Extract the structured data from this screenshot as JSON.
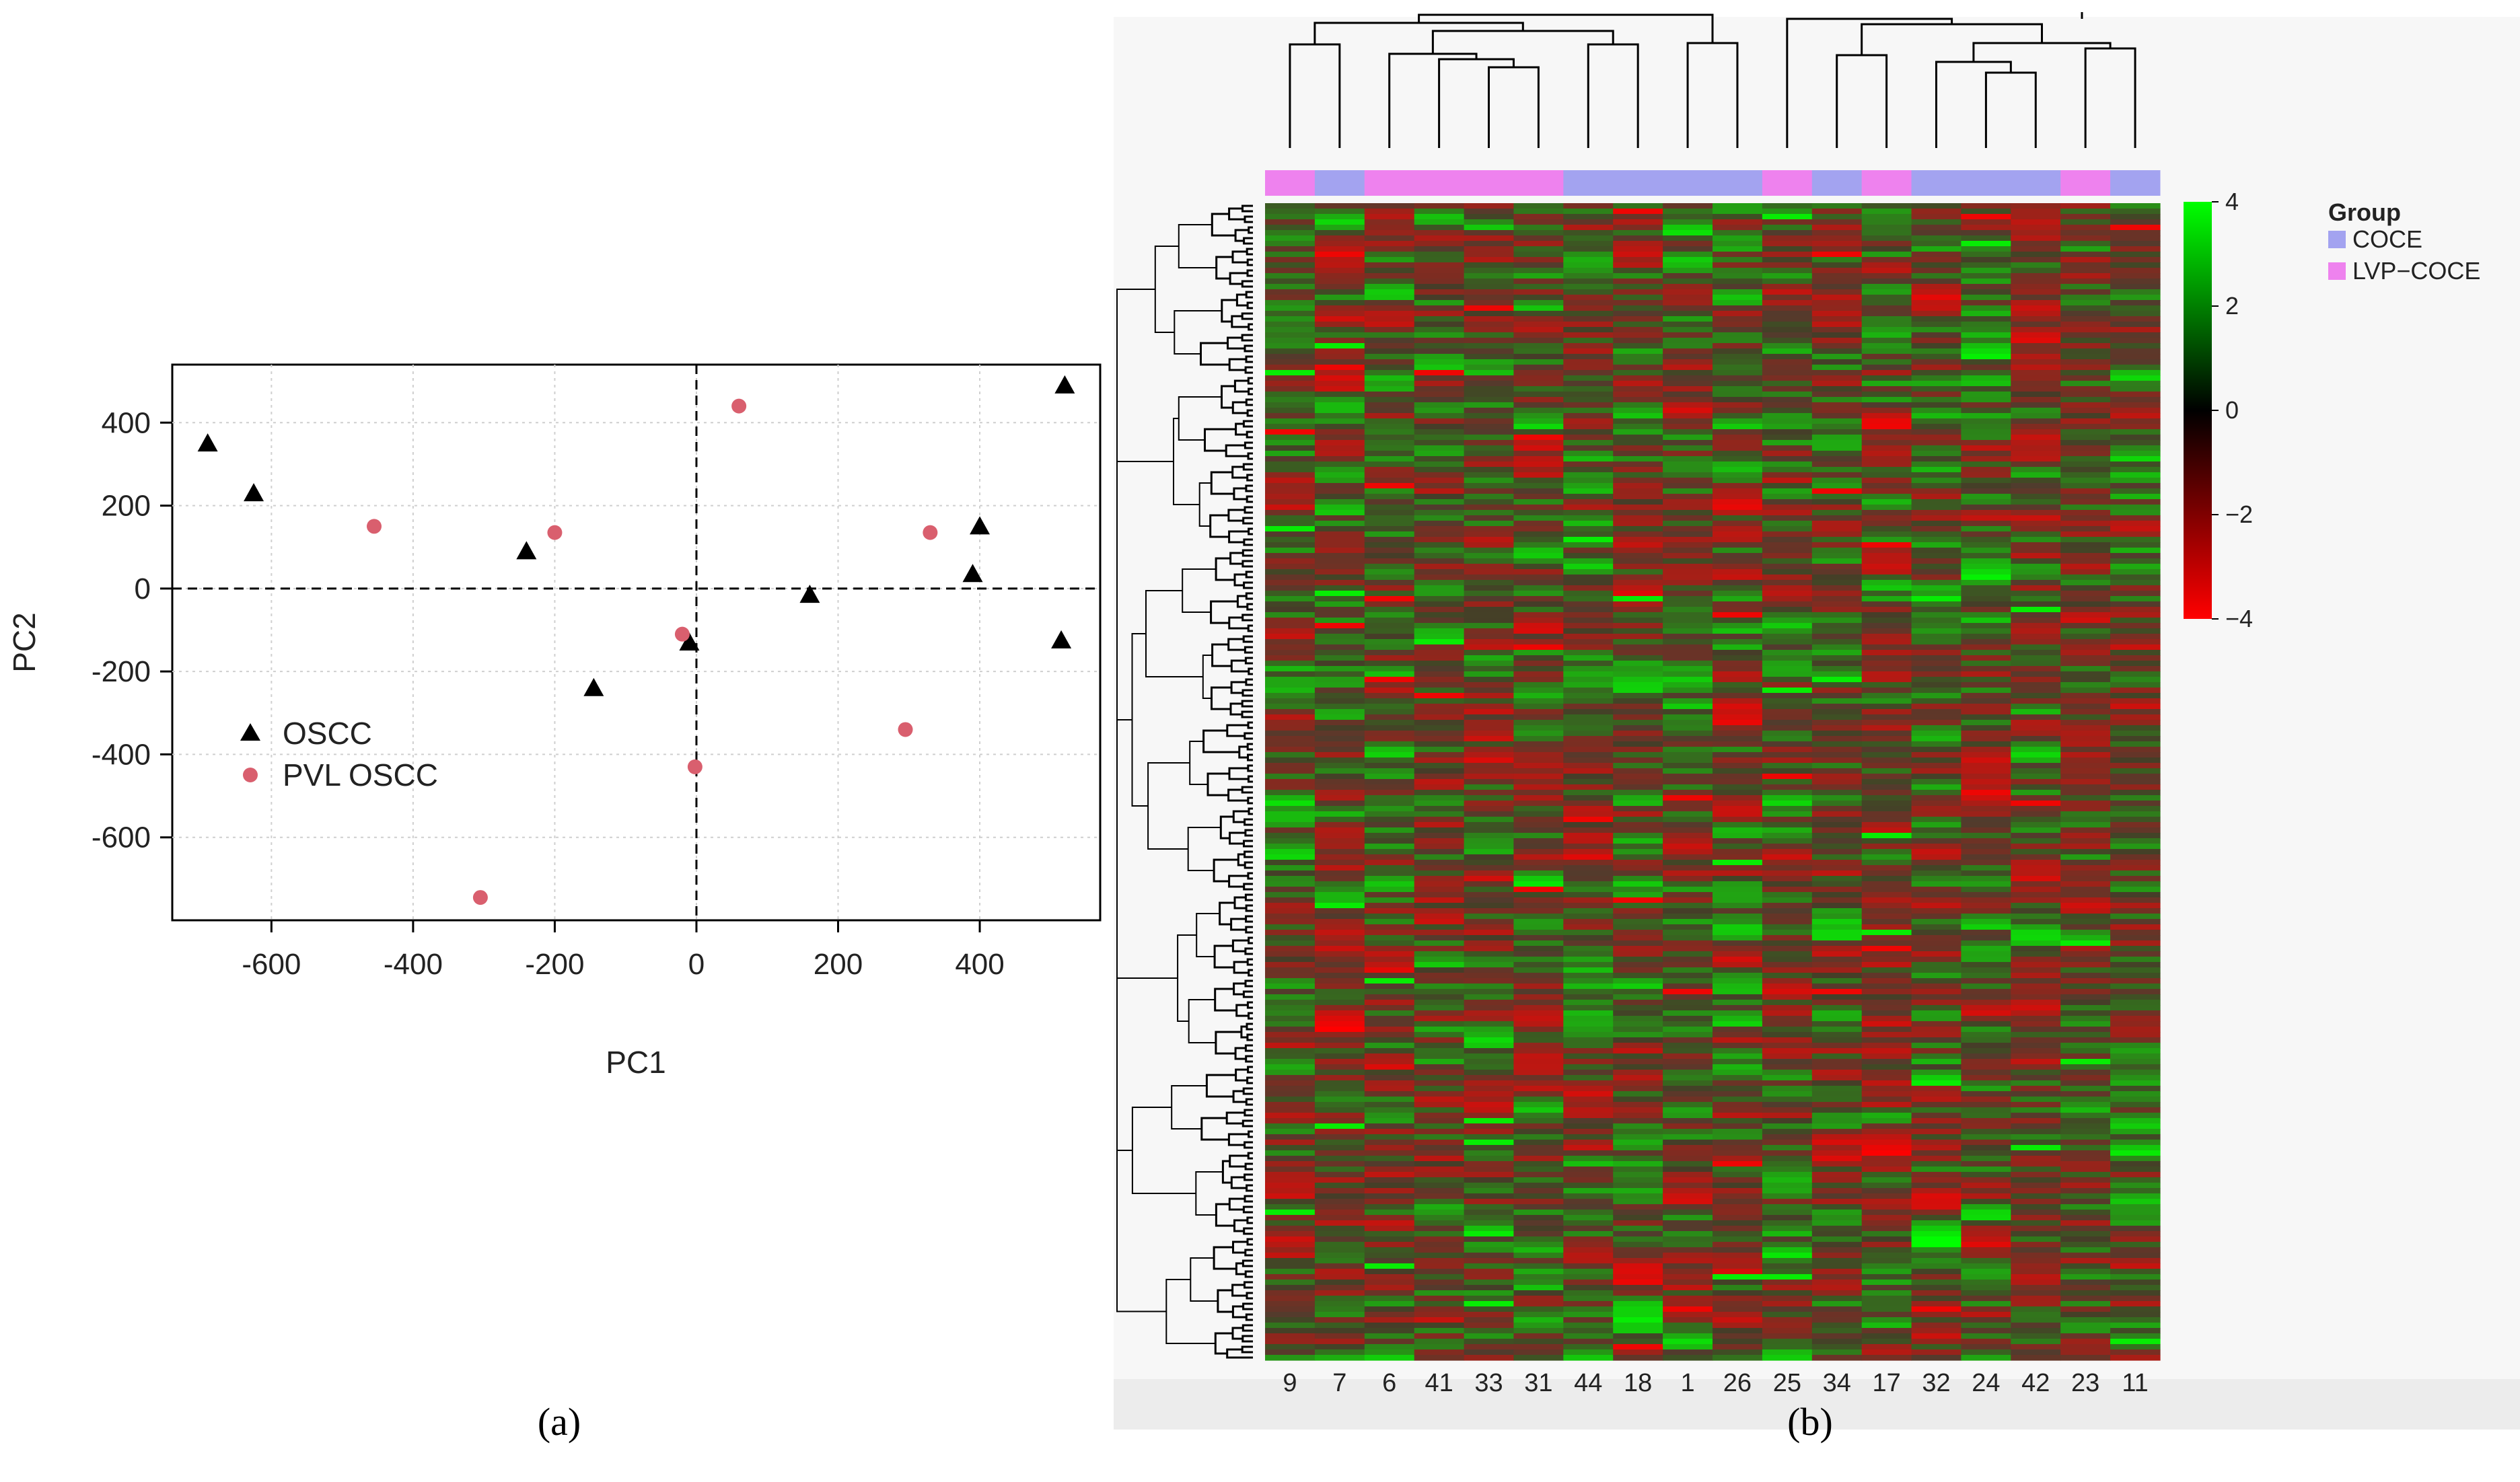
{
  "panel_labels": {
    "a": "(a)",
    "b": "(b)"
  },
  "chart_data": [
    {
      "type": "scatter",
      "panel": "a",
      "xlabel": "PC1",
      "ylabel": "PC2",
      "xlim": [
        -740,
        570
      ],
      "ylim": [
        -800,
        540
      ],
      "xticks": [
        -600,
        -400,
        -200,
        0,
        200,
        400
      ],
      "yticks": [
        -600,
        -400,
        -200,
        0,
        200,
        400
      ],
      "grid": true,
      "zero_lines": true,
      "legend_position": "middle-left",
      "series": [
        {
          "name": "OSCC",
          "marker": "triangle",
          "color": "#000000",
          "points": [
            {
              "x": -690,
              "y": 350
            },
            {
              "x": -625,
              "y": 230
            },
            {
              "x": 520,
              "y": 490
            },
            {
              "x": 400,
              "y": 150
            },
            {
              "x": 390,
              "y": 35
            },
            {
              "x": -240,
              "y": 90
            },
            {
              "x": 160,
              "y": -15
            },
            {
              "x": -10,
              "y": -130
            },
            {
              "x": 515,
              "y": -125
            },
            {
              "x": -145,
              "y": -240
            }
          ]
        },
        {
          "name": "PVL OSCC",
          "marker": "circle",
          "color": "#d95f6e",
          "points": [
            {
              "x": 60,
              "y": 440
            },
            {
              "x": -455,
              "y": 150
            },
            {
              "x": -200,
              "y": 135
            },
            {
              "x": 330,
              "y": 135
            },
            {
              "x": -20,
              "y": -110
            },
            {
              "x": -2,
              "y": -430
            },
            {
              "x": 295,
              "y": -340
            },
            {
              "x": -305,
              "y": -745
            }
          ]
        }
      ]
    },
    {
      "type": "heatmap",
      "panel": "b",
      "columns": [
        "9",
        "7",
        "6",
        "41",
        "33",
        "31",
        "44",
        "18",
        "1",
        "26",
        "25",
        "34",
        "17",
        "32",
        "24",
        "42",
        "23",
        "11"
      ],
      "column_groups": [
        "LVP−COCE",
        "COCE",
        "LVP−COCE",
        "LVP−COCE",
        "LVP−COCE",
        "LVP−COCE",
        "COCE",
        "COCE",
        "COCE",
        "COCE",
        "LVP−COCE",
        "COCE",
        "LVP−COCE",
        "COCE",
        "COCE",
        "COCE",
        "LVP−COCE",
        "COCE"
      ],
      "legend": {
        "title": "Group",
        "items": [
          {
            "label": "COCE",
            "color": "#a3a3f0"
          },
          {
            "label": "LVP−COCE",
            "color": "#ee82ee"
          }
        ]
      },
      "colorbar": {
        "range": [
          -4,
          4
        ],
        "ticks": [
          "4",
          "2",
          "0",
          "−2",
          "−4"
        ],
        "colors": {
          "high": "#00ff00",
          "mid": "#000000",
          "low": "#ff0000"
        }
      }
    }
  ]
}
